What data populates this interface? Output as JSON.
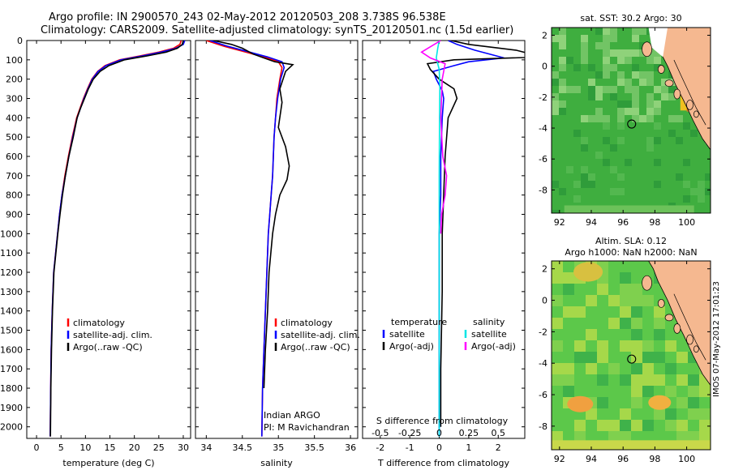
{
  "title": {
    "line1": "Argo profile: IN 2900570_243 02-May-2012 20120503_208 3.738S 96.538E",
    "line2": "Climatology: CARS2009. Satellite-adjusted climatology: synTS_20120501.nc (1.5d earlier)"
  },
  "colors": {
    "climatology": "#ff0000",
    "satellite": "#0000ff",
    "argo": "#000000",
    "sal_satellite": "#00e5e5",
    "sal_argo": "#ff00ff"
  },
  "chart_data": [
    {
      "type": "line",
      "xlabel": "temperature (deg C)",
      "ylabel": "",
      "xlim": [
        -2,
        31.5
      ],
      "ylim": [
        2060,
        0
      ],
      "xticks": [
        0,
        5,
        10,
        15,
        20,
        25,
        30
      ],
      "yticks": [
        0,
        100,
        200,
        300,
        400,
        500,
        600,
        700,
        800,
        900,
        1000,
        1100,
        1200,
        1300,
        1400,
        1500,
        1600,
        1700,
        1800,
        1900,
        2000
      ],
      "legend": [
        "climatology",
        "satellite-adj. clim.",
        "Argo(..raw -QC)"
      ],
      "legend_position": "lower-left",
      "series": [
        {
          "name": "climatology",
          "color": "#ff0000",
          "x": [
            29.6,
            29.3,
            28.0,
            25.0,
            21.0,
            17.0,
            14.0,
            12.5,
            11.3,
            10.4,
            9.6,
            8.9,
            8.2,
            7.3,
            6.5,
            5.8,
            5.2,
            4.7,
            4.3,
            3.9,
            3.5,
            3.2,
            3.0,
            2.9,
            2.8
          ],
          "y": [
            0,
            20,
            40,
            60,
            80,
            100,
            130,
            160,
            200,
            250,
            300,
            350,
            400,
            500,
            600,
            700,
            800,
            900,
            1000,
            1100,
            1200,
            1400,
            1600,
            1800,
            2050
          ]
        },
        {
          "name": "satellite-adj. clim.",
          "color": "#0000ff",
          "x": [
            30.3,
            30.0,
            28.5,
            25.5,
            21.5,
            17.3,
            14.2,
            12.6,
            11.4,
            10.5,
            9.7,
            9.0,
            8.3,
            7.4,
            6.6,
            5.9,
            5.2,
            4.7,
            4.3,
            3.9,
            3.5,
            3.2,
            3.0,
            2.9,
            2.8
          ],
          "y": [
            0,
            20,
            40,
            60,
            80,
            100,
            130,
            160,
            200,
            250,
            300,
            350,
            400,
            500,
            600,
            700,
            800,
            900,
            1000,
            1100,
            1200,
            1400,
            1600,
            1800,
            2050
          ]
        },
        {
          "name": "Argo(..raw -QC)",
          "color": "#000000",
          "x": [
            30.0,
            29.8,
            28.8,
            26.5,
            22.5,
            18.0,
            14.8,
            13.0,
            11.6,
            10.6,
            9.8,
            9.0,
            8.3,
            7.5,
            6.6,
            5.9,
            5.3,
            4.8,
            4.35,
            3.95,
            3.55,
            3.25,
            3.05,
            2.92,
            2.85
          ],
          "y": [
            0,
            20,
            40,
            60,
            80,
            100,
            130,
            160,
            200,
            250,
            300,
            350,
            400,
            500,
            600,
            700,
            800,
            900,
            1000,
            1100,
            1200,
            1400,
            1600,
            1800,
            2050
          ]
        }
      ]
    },
    {
      "type": "line",
      "xlabel": "salinity",
      "ylabel": "",
      "xlim": [
        33.85,
        36.1
      ],
      "ylim": [
        2060,
        0
      ],
      "xticks": [
        34,
        34.5,
        35,
        35.5,
        36
      ],
      "xticklabels": [
        "34",
        "34.5",
        "35",
        "35.5",
        "36"
      ],
      "legend": [
        "climatology",
        "satellite-adj. clim.",
        "Argo(..raw -QC)"
      ],
      "legend_position": "lower-right",
      "annotation": {
        "line1": "Indian ARGO",
        "line2": "PI: M Ravichandran"
      },
      "series": [
        {
          "name": "climatology",
          "color": "#ff0000",
          "x": [
            34.0,
            34.25,
            34.55,
            34.8,
            35.0,
            35.05,
            35.02,
            34.98,
            34.96,
            34.94,
            34.93,
            34.92,
            34.9,
            34.88,
            34.86,
            34.84,
            34.82,
            34.8,
            34.78,
            34.77
          ],
          "y": [
            0,
            30,
            60,
            85,
            110,
            140,
            200,
            300,
            400,
            500,
            600,
            700,
            800,
            900,
            1000,
            1200,
            1400,
            1600,
            1800,
            2050
          ]
        },
        {
          "name": "satellite-adj. clim.",
          "color": "#0000ff",
          "x": [
            34.05,
            34.3,
            34.6,
            34.85,
            35.05,
            35.08,
            35.03,
            34.99,
            34.96,
            34.94,
            34.93,
            34.92,
            34.9,
            34.88,
            34.86,
            34.84,
            34.82,
            34.8,
            34.78,
            34.77
          ],
          "y": [
            0,
            30,
            60,
            85,
            110,
            140,
            200,
            300,
            400,
            500,
            600,
            700,
            800,
            900,
            1000,
            1200,
            1400,
            1600,
            1800,
            2050
          ]
        },
        {
          "name": "Argo(..raw -QC)",
          "color": "#000000",
          "x": [
            34.1,
            34.35,
            34.5,
            34.65,
            34.8,
            34.95,
            35.2,
            35.1,
            35.02,
            35.05,
            35.0,
            35.1,
            35.15,
            35.12,
            35.02,
            34.96,
            34.92,
            34.87,
            34.85,
            34.82,
            34.8
          ],
          "y": [
            0,
            20,
            40,
            70,
            90,
            110,
            125,
            160,
            250,
            320,
            450,
            550,
            650,
            720,
            800,
            900,
            1000,
            1200,
            1400,
            1600,
            1800
          ]
        }
      ]
    },
    {
      "type": "line",
      "xlabel": "T difference from climatology",
      "xlabel2": "S difference from climatology",
      "xlim": [
        -2.6,
        2.9
      ],
      "ylim": [
        2060,
        0
      ],
      "xticks": [
        -2,
        -1,
        0,
        1,
        2
      ],
      "xticklabels": [
        "-2",
        "-1",
        "0",
        "1",
        "2"
      ],
      "sticks": [
        -0.5,
        -0.25,
        0,
        0.25,
        0.5
      ],
      "sticklabels": [
        "-0.5",
        "-0.25",
        "0",
        "0.25",
        "0.5"
      ],
      "legend_temperature_title": "temperature",
      "legend_salinity_title": "salinity",
      "legend": [
        "satellite",
        "Argo(-adj)",
        "satellite",
        "Argo(-adj)"
      ],
      "series": [
        {
          "name": "satellite",
          "group": "temperature",
          "color": "#0000ff",
          "x": [
            0.3,
            0.6,
            1.2,
            2.2,
            1.0,
            0.5,
            -0.2,
            -0.1,
            0.1,
            0.15,
            0.1,
            0.05,
            0.05,
            0.0,
            0.0,
            0.0,
            0.0
          ],
          "y": [
            0,
            20,
            50,
            90,
            110,
            130,
            160,
            200,
            260,
            300,
            400,
            600,
            800,
            1000,
            1300,
            1700,
            2050
          ]
        },
        {
          "name": "Argo(-adj)",
          "group": "temperature",
          "color": "#000000",
          "x": [
            0.4,
            1.0,
            2.6,
            3.5,
            0.5,
            -0.4,
            -0.3,
            0.0,
            0.5,
            0.6,
            0.3,
            0.2,
            0.15,
            0.1,
            0.1,
            0.05,
            0.05
          ],
          "y": [
            0,
            20,
            50,
            85,
            100,
            120,
            150,
            200,
            250,
            300,
            400,
            600,
            800,
            1000,
            1300,
            1700,
            2000
          ]
        },
        {
          "name": "satellite",
          "group": "salinity",
          "color": "#00e5e5",
          "x": [
            0.0,
            -0.05,
            -0.1,
            0.0,
            0.02,
            0.01,
            0.0,
            0.0,
            0.0,
            0.0,
            0.0
          ],
          "y": [
            0,
            40,
            90,
            150,
            250,
            400,
            700,
            1000,
            1400,
            1800,
            2050
          ]
        },
        {
          "name": "Argo(-adj)",
          "group": "salinity",
          "color": "#ff00ff",
          "x": [
            0.05,
            -0.6,
            -0.3,
            0.2,
            0.1,
            0.05,
            0.12,
            0.25,
            0.2,
            0.08,
            0.05
          ],
          "y": [
            0,
            60,
            90,
            120,
            200,
            400,
            600,
            700,
            800,
            900,
            1000
          ]
        }
      ]
    },
    {
      "type": "heatmap",
      "title": "sat. SST: 30.2 Argo: 30",
      "xlim": [
        91.5,
        101.5
      ],
      "ylim": [
        -9.5,
        2.5
      ],
      "xticks": [
        92,
        94,
        96,
        98,
        100
      ],
      "yticks": [
        2,
        0,
        -2,
        -4,
        -6,
        -8
      ],
      "marker": {
        "lon": 96.538,
        "lat": -3.738
      }
    },
    {
      "type": "heatmap",
      "title": "Altim. SLA: 0.12",
      "subtitle": "Argo h1000: NaN h2000: NaN",
      "xlim": [
        91.5,
        101.5
      ],
      "ylim": [
        -9.5,
        2.5
      ],
      "xticks": [
        92,
        94,
        96,
        98,
        100
      ],
      "yticks": [
        2,
        0,
        -2,
        -4,
        -6,
        -8
      ],
      "marker": {
        "lon": 96.538,
        "lat": -3.738
      }
    }
  ],
  "footer": {
    "stamp": "IMOS 07-May-2012 17:01:23"
  }
}
